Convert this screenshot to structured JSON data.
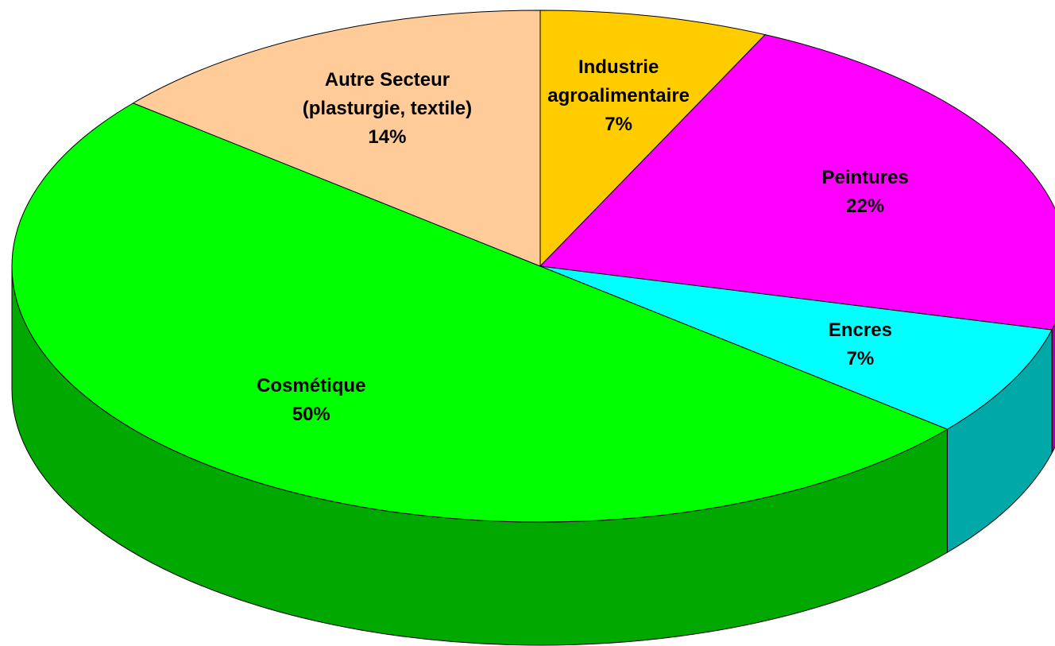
{
  "chart_data": {
    "type": "pie",
    "categories": [
      "Industrie agroalimentaire",
      "Peintures",
      "Encres",
      "Cosmétique",
      "Autre Secteur (plasturgie, textile)"
    ],
    "values": [
      7,
      22,
      7,
      50,
      14
    ],
    "value_labels": [
      "7%",
      "22%",
      "7%",
      "50%",
      "14%"
    ],
    "colors": [
      "#ffcc00",
      "#ff00ff",
      "#00ffff",
      "#00ff00",
      "#ffcc99"
    ]
  }
}
